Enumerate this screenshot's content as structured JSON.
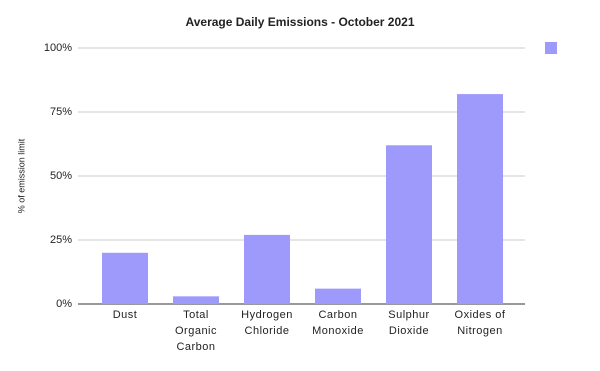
{
  "chart_data": {
    "type": "bar",
    "title": "Average Daily Emissions - October 2021",
    "y_label": "% of emission limit",
    "categories": [
      "Dust",
      "Total Organic Carbon",
      "Hydrogen Chloride",
      "Carbon Monoxide",
      "Sulphur Dioxide",
      "Oxides of Nitrogen"
    ],
    "values": [
      20,
      3,
      27,
      6,
      62,
      82
    ],
    "color": "#9e9afc",
    "ylim": [
      0,
      100
    ],
    "yticks": [
      {
        "value": 0,
        "label": "0%"
      },
      {
        "value": 25,
        "label": "25%"
      },
      {
        "value": 50,
        "label": "50%"
      },
      {
        "value": 75,
        "label": "75%"
      },
      {
        "value": 100,
        "label": "100%"
      }
    ],
    "grid": true
  }
}
